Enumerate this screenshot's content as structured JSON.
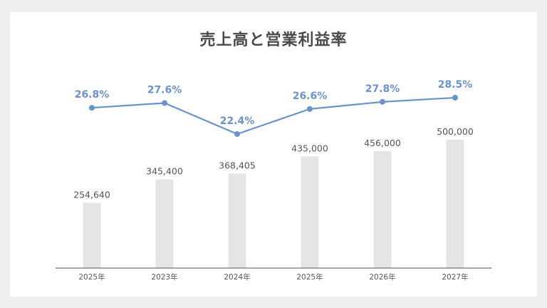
{
  "chart_data": {
    "type": "bar",
    "title": "売上高と営業利益率",
    "categories": [
      "2025年",
      "2023年",
      "2024年",
      "2025年",
      "2026年",
      "2027年"
    ],
    "series": [
      {
        "type": "bar",
        "values": [
          254640,
          345400,
          368405,
          435000,
          456000,
          500000
        ],
        "labels": [
          "254,640",
          "345,400",
          "368,405",
          "435,000",
          "456,000",
          "500,000"
        ],
        "color": "#e5e5e5"
      },
      {
        "type": "line",
        "values": [
          26.8,
          27.6,
          22.4,
          26.6,
          27.8,
          28.5
        ],
        "labels": [
          "26.8%",
          "27.6%",
          "22.4%",
          "26.6%",
          "27.8%",
          "28.5%"
        ],
        "color": "#6b93c8"
      }
    ],
    "grid": false,
    "legend": "none"
  }
}
